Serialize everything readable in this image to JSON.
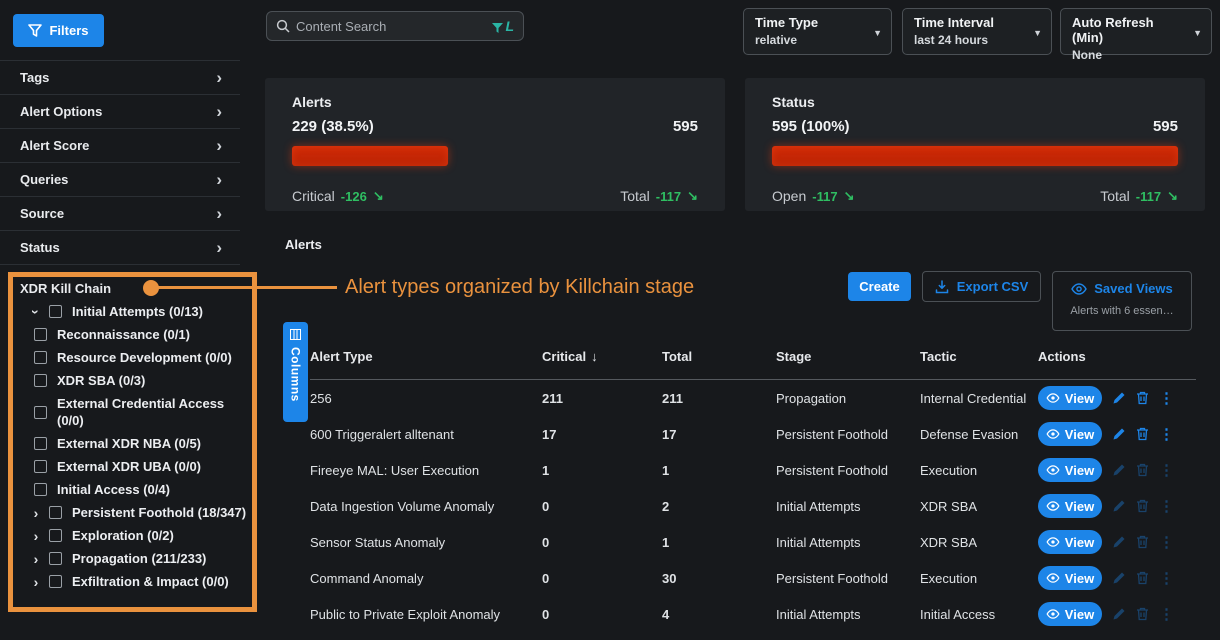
{
  "colors": {
    "accent_blue": "#1d85e8",
    "annotation_orange": "#ea923e",
    "bar_red": "#c42708",
    "delta_green": "#2fbe62",
    "lucene_teal": "#2ab5a5"
  },
  "icons": {
    "filters": "funnel",
    "search": "magnifying-glass",
    "lucene_filter": "funnel-L",
    "dropdown_caret": "▼",
    "chevron_right": "›",
    "trend_down": "↘",
    "sort_descending": "↓",
    "export": "download-tray",
    "saved_views": "eye",
    "view": "eye",
    "edit": "pencil",
    "delete": "trash",
    "more": "kebab-dots",
    "columns": "column-grid",
    "checkbox": "empty-square"
  },
  "sidebar": {
    "filters_button_label": "Filters",
    "menu_items": [
      {
        "label": "Tags"
      },
      {
        "label": "Alert Options"
      },
      {
        "label": "Alert Score"
      },
      {
        "label": "Queries"
      },
      {
        "label": "Source"
      },
      {
        "label": "Status"
      }
    ],
    "killchain": {
      "title": "XDR Kill Chain",
      "items": [
        {
          "label": "Initial Attempts (0/13)",
          "level": 0,
          "state": "expanded",
          "checked": false
        },
        {
          "label": "Reconnaissance (0/1)",
          "level": 1,
          "state": "leaf",
          "checked": false
        },
        {
          "label": "Resource Development (0/0)",
          "level": 1,
          "state": "leaf",
          "checked": false
        },
        {
          "label": "XDR SBA (0/3)",
          "level": 1,
          "state": "leaf",
          "checked": false
        },
        {
          "label": "External Credential Access (0/0)",
          "level": 1,
          "state": "leaf",
          "checked": false
        },
        {
          "label": "External XDR NBA (0/5)",
          "level": 1,
          "state": "leaf",
          "checked": false
        },
        {
          "label": "External XDR UBA (0/0)",
          "level": 1,
          "state": "leaf",
          "checked": false
        },
        {
          "label": "Initial Access (0/4)",
          "level": 1,
          "state": "leaf",
          "checked": false
        },
        {
          "label": "Persistent Foothold (18/347)",
          "level": 0,
          "state": "collapsed",
          "checked": false
        },
        {
          "label": "Exploration (0/2)",
          "level": 0,
          "state": "collapsed",
          "checked": false
        },
        {
          "label": "Propagation (211/233)",
          "level": 0,
          "state": "collapsed",
          "checked": false
        },
        {
          "label": "Exfiltration & Impact (0/0)",
          "level": 0,
          "state": "collapsed",
          "checked": false
        }
      ]
    }
  },
  "topbar": {
    "search_placeholder": "Content Search",
    "dropdowns": [
      {
        "label": "Time Type",
        "value": "relative"
      },
      {
        "label": "Time Interval",
        "value": "last 24 hours"
      },
      {
        "label": "Auto Refresh (Min)",
        "value": "None"
      }
    ]
  },
  "summary": {
    "alerts_card": {
      "title": "Alerts",
      "left_value": "229 (38.5%)",
      "right_value": "595",
      "bar_percent": 38.5,
      "footer_left_label": "Critical",
      "footer_left_delta": "-126",
      "footer_right_label": "Total",
      "footer_right_delta": "-117"
    },
    "status_card": {
      "title": "Status",
      "left_value": "595 (100%)",
      "right_value": "595",
      "bar_percent": 100,
      "footer_left_label": "Open",
      "footer_left_delta": "-117",
      "footer_right_label": "Total",
      "footer_right_delta": "-117"
    }
  },
  "content": {
    "section_label": "Alerts",
    "annotation": "Alert types organized by Killchain stage",
    "create_button": "Create",
    "export_button": "Export CSV",
    "saved_views_label": "Saved Views",
    "saved_views_subtitle": "Alerts with 6 essen…",
    "columns_button": "Columns"
  },
  "table": {
    "headers": [
      "Alert Type",
      "Critical",
      "Total",
      "Stage",
      "Tactic",
      "Actions"
    ],
    "sort_column": "Critical",
    "sort_direction": "descending",
    "view_label": "View",
    "rows": [
      {
        "alert_type": "256",
        "critical": "211",
        "total": "211",
        "stage": "Propagation",
        "tactic": "Internal Credential"
      },
      {
        "alert_type": "600 Triggeralert alltenant",
        "critical": "17",
        "total": "17",
        "stage": "Persistent Foothold",
        "tactic": "Defense Evasion"
      },
      {
        "alert_type": "Fireeye MAL: User Execution",
        "critical": "1",
        "total": "1",
        "stage": "Persistent Foothold",
        "tactic": "Execution"
      },
      {
        "alert_type": "Data Ingestion Volume Anomaly",
        "critical": "0",
        "total": "2",
        "stage": "Initial Attempts",
        "tactic": "XDR SBA"
      },
      {
        "alert_type": "Sensor Status Anomaly",
        "critical": "0",
        "total": "1",
        "stage": "Initial Attempts",
        "tactic": "XDR SBA"
      },
      {
        "alert_type": "Command Anomaly",
        "critical": "0",
        "total": "30",
        "stage": "Persistent Foothold",
        "tactic": "Execution"
      },
      {
        "alert_type": "Public to Private Exploit Anomaly",
        "critical": "0",
        "total": "4",
        "stage": "Initial Attempts",
        "tactic": "Initial Access"
      }
    ]
  }
}
